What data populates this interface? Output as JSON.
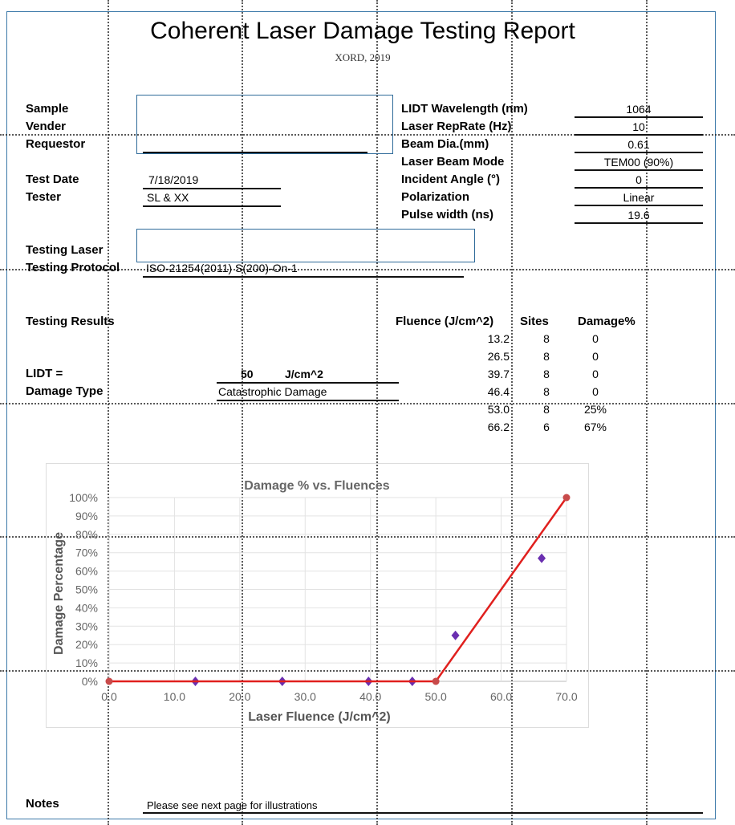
{
  "header": {
    "title": "Coherent Laser Damage Testing Report",
    "subtitle": "XORD, 2019"
  },
  "left_fields": {
    "sample_label": "Sample",
    "vender_label": "Vender",
    "requestor_label": "Requestor",
    "test_date_label": "Test Date",
    "test_date": "7/18/2019",
    "tester_label": "Tester",
    "tester": "SL & XX",
    "testing_laser_label": "Testing Laser",
    "testing_protocol_label": "Testing Protocol",
    "testing_protocol": "ISO-21254(2011) S(200)-On-1"
  },
  "right_fields": [
    {
      "label": "LIDT Wavelength (nm)",
      "value": "1064"
    },
    {
      "label": "Laser RepRate (Hz)",
      "value": "10"
    },
    {
      "label": "Beam Dia.(mm)",
      "value": "0.61"
    },
    {
      "label": "Laser Beam Mode",
      "value": "TEM00 (90%)"
    },
    {
      "label": "Incident Angle (°)",
      "value": "0"
    },
    {
      "label": "Polarization",
      "value": "Linear"
    },
    {
      "label": "Pulse width (ns)",
      "value": "19.6"
    }
  ],
  "results": {
    "label": "Testing Results",
    "lidt_label": "LIDT =",
    "lidt_value": "50",
    "lidt_unit": "J/cm^2",
    "damage_type_label": "Damage Type",
    "damage_type": "Catastrophic Damage",
    "columns": [
      "Fluence (J/cm^2)",
      "Sites",
      "Damage%"
    ],
    "rows": [
      [
        "13.2",
        "8",
        "0"
      ],
      [
        "26.5",
        "8",
        "0"
      ],
      [
        "39.7",
        "8",
        "0"
      ],
      [
        "46.4",
        "8",
        "0"
      ],
      [
        "53.0",
        "8",
        "25%"
      ],
      [
        "66.2",
        "6",
        "67%"
      ]
    ]
  },
  "notes": {
    "label": "Notes",
    "text": "Please see next page for illustrations"
  },
  "chart_data": {
    "type": "scatter",
    "title": "Damage % vs. Fluences",
    "xlabel": "Laser Fluence (J/cm^2)",
    "ylabel": "Damage Percentage",
    "xlim": [
      0,
      70
    ],
    "ylim": [
      0,
      100
    ],
    "xticks": [
      "0.0",
      "10.0",
      "20.0",
      "30.0",
      "40.0",
      "50.0",
      "60.0",
      "70.0"
    ],
    "yticks": [
      "0%",
      "10%",
      "20%",
      "30%",
      "40%",
      "50%",
      "60%",
      "70%",
      "80%",
      "90%",
      "100%"
    ],
    "grid": true,
    "series": [
      {
        "type": "scatter",
        "marker": "diamond",
        "color": "#6a2fb0",
        "x": [
          13.2,
          26.5,
          39.7,
          46.4,
          53.0,
          66.2
        ],
        "y": [
          0,
          0,
          0,
          0,
          25,
          67
        ]
      },
      {
        "type": "line",
        "marker": "circle",
        "color": "#e0201e",
        "x": [
          0,
          50,
          70
        ],
        "y": [
          0,
          0,
          100
        ]
      }
    ]
  }
}
